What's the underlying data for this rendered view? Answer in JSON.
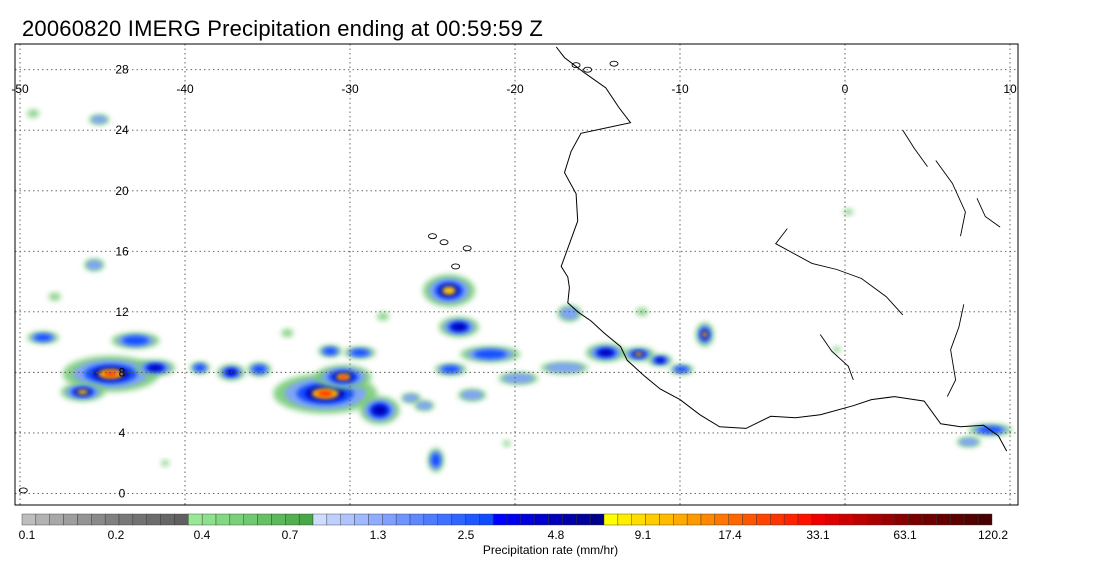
{
  "title": "20060820 IMERG Precipitation ending at 00:59:59 Z",
  "map": {
    "lon_ticks": [
      "-50",
      "-40",
      "-30",
      "-20",
      "-10",
      "0",
      "10"
    ],
    "lat_ticks": [
      "28",
      "24",
      "20",
      "16",
      "12",
      "8",
      "4",
      "0"
    ],
    "lon_range": [
      -50,
      10
    ],
    "lat_range": [
      -0.5,
      29.5
    ],
    "gridlines": "dotted",
    "colors": {
      "frame": "#000000",
      "coastline": "#000000",
      "grid": "#555555"
    }
  },
  "colorbar": {
    "unit_label": "Precipitation rate (mm/hr)",
    "tick_labels": [
      "0.1",
      "0.2",
      "0.4",
      "0.7",
      "1.3",
      "2.5",
      "4.8",
      "9.1",
      "17.4",
      "33.1",
      "63.1",
      "120.2"
    ],
    "colors": [
      "#bdbdbd",
      "#b2b2b2",
      "#a8a8a8",
      "#9e9e9e",
      "#949494",
      "#8a8a8a",
      "#808080",
      "#787878",
      "#727272",
      "#6c6c6c",
      "#666666",
      "#606060",
      "#98e898",
      "#8ee08e",
      "#84d884",
      "#7ad07a",
      "#70c870",
      "#66c066",
      "#5cb85c",
      "#52b052",
      "#48a848",
      "#cfdcff",
      "#bfd0ff",
      "#afc4ff",
      "#9fb8ff",
      "#8facff",
      "#7fa0ff",
      "#6f94ff",
      "#5f88ff",
      "#4f7cff",
      "#3f70ff",
      "#2f64ff",
      "#1f58ff",
      "#0f4cff",
      "#0000ff",
      "#0000ee",
      "#0000dd",
      "#0000cc",
      "#0000bb",
      "#0000aa",
      "#00009a",
      "#00008a",
      "#ffff00",
      "#ffee00",
      "#ffdd00",
      "#ffcc00",
      "#ffbb00",
      "#ffaa00",
      "#ff9900",
      "#ff8800",
      "#ff7700",
      "#ff6600",
      "#ff5500",
      "#ff4400",
      "#ff3300",
      "#ff2200",
      "#ff1100",
      "#ee0000",
      "#dd0000",
      "#cc0000",
      "#bb0000",
      "#aa0000",
      "#990000",
      "#880000",
      "#7a0000",
      "#700000",
      "#660000",
      "#5c0000",
      "#520000",
      "#480000"
    ]
  }
}
